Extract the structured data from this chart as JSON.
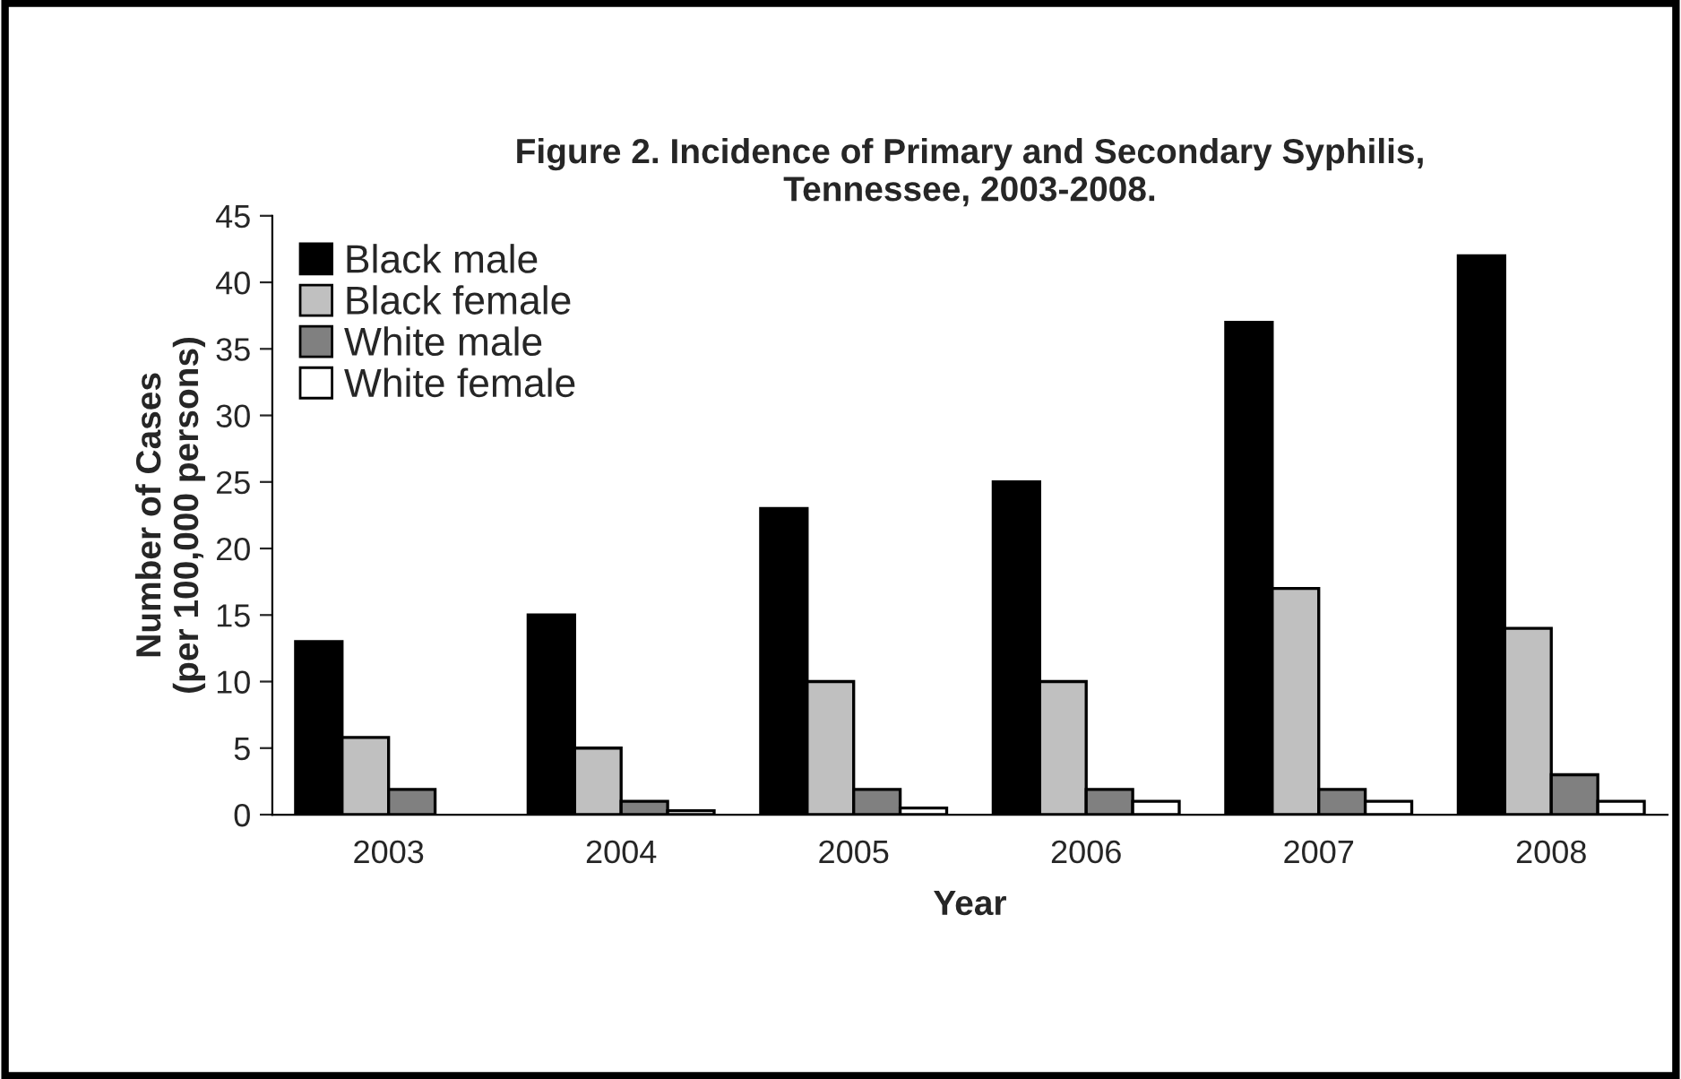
{
  "chart_data": {
    "type": "bar",
    "title": "Figure 2. Incidence of Primary and Secondary Syphilis,\nTennessee, 2003-2008.",
    "xlabel": "Year",
    "ylabel": "Number of Cases\n(per 100,000 persons)",
    "categories": [
      "2003",
      "2004",
      "2005",
      "2006",
      "2007",
      "2008"
    ],
    "series": [
      {
        "name": "Black male",
        "color": "#000000",
        "values": [
          13,
          15,
          23,
          25,
          37,
          42
        ]
      },
      {
        "name": "Black female",
        "color": "#c0c0c0",
        "values": [
          5.8,
          5,
          10,
          10,
          17,
          14
        ]
      },
      {
        "name": "White male",
        "color": "#808080",
        "values": [
          1.9,
          1,
          1.9,
          1.9,
          1.9,
          3
        ]
      },
      {
        "name": "White female",
        "color": "#ffffff",
        "values": [
          null,
          0.3,
          0.5,
          1,
          1,
          1
        ]
      }
    ],
    "ylim": [
      0,
      45
    ],
    "yticks": [
      0,
      5,
      10,
      15,
      20,
      25,
      30,
      35,
      40,
      45
    ],
    "grid": false,
    "legend": "top left"
  }
}
